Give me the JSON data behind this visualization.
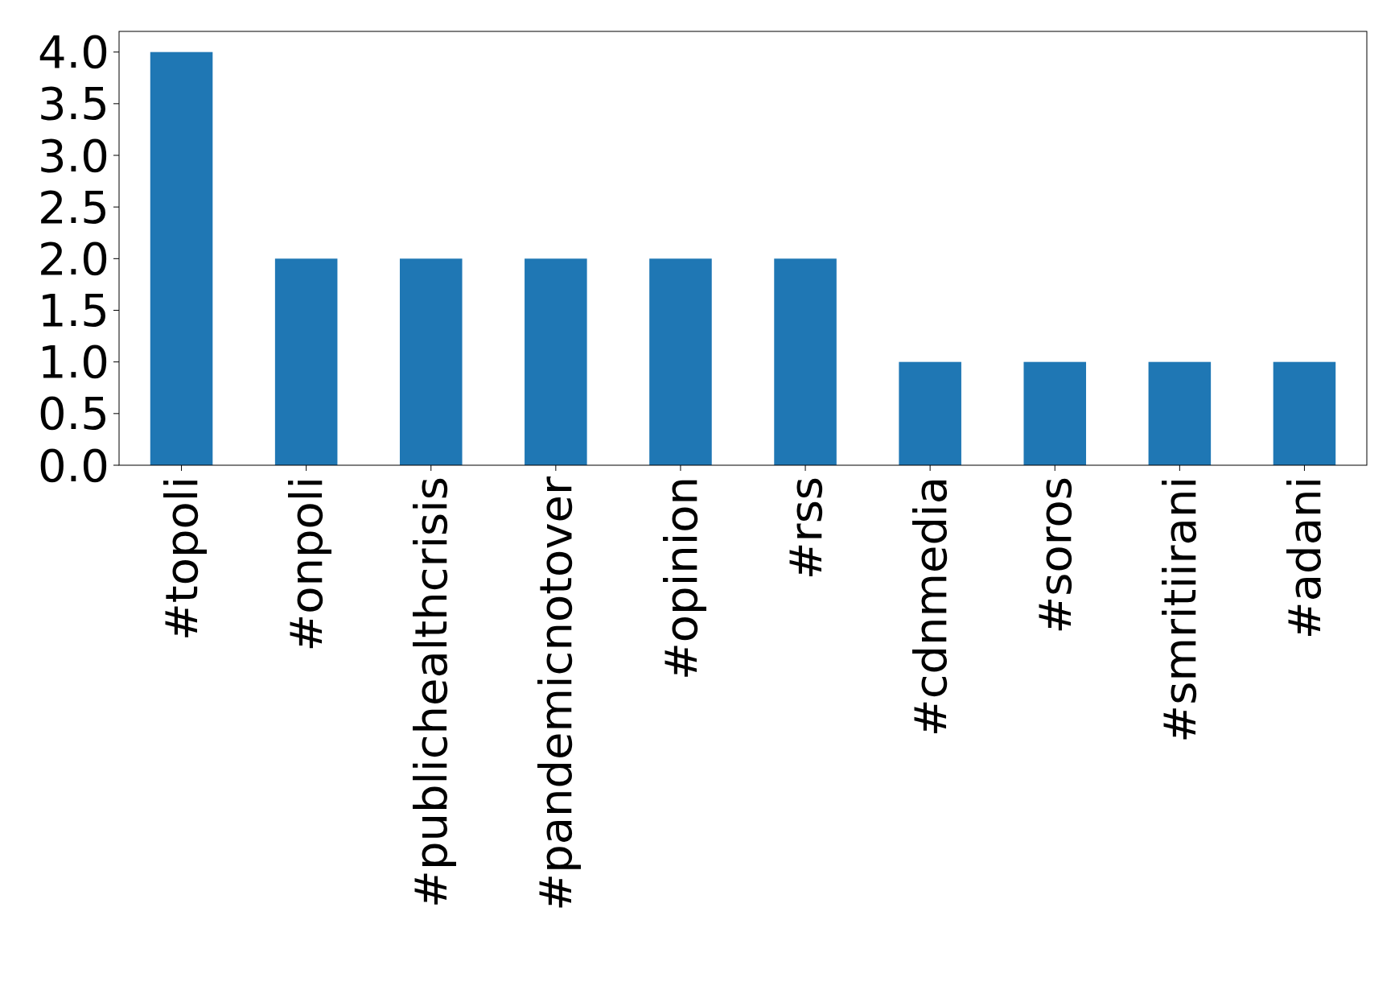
{
  "chart_data": {
    "type": "bar",
    "categories": [
      "#topoli",
      "#onpoli",
      "#publichealthcrisis",
      "#pandemicnotover",
      "#opinion",
      "#rss",
      "#cdnmedia",
      "#soros",
      "#smritiirani",
      "#adani"
    ],
    "values": [
      4,
      2,
      2,
      2,
      2,
      2,
      1,
      1,
      1,
      1
    ],
    "color": "#1f77b4",
    "ylim": [
      0,
      4.2
    ],
    "yticks": [
      {
        "value": 0,
        "label": "0.0"
      },
      {
        "value": 0.5,
        "label": "0.5"
      },
      {
        "value": 1,
        "label": "1.0"
      },
      {
        "value": 1.5,
        "label": "1.5"
      },
      {
        "value": 2,
        "label": "2.0"
      },
      {
        "value": 2.5,
        "label": "2.5"
      },
      {
        "value": 3,
        "label": "3.0"
      },
      {
        "value": 3.5,
        "label": "3.5"
      },
      {
        "value": 4,
        "label": "4.0"
      }
    ],
    "grid": false
  }
}
